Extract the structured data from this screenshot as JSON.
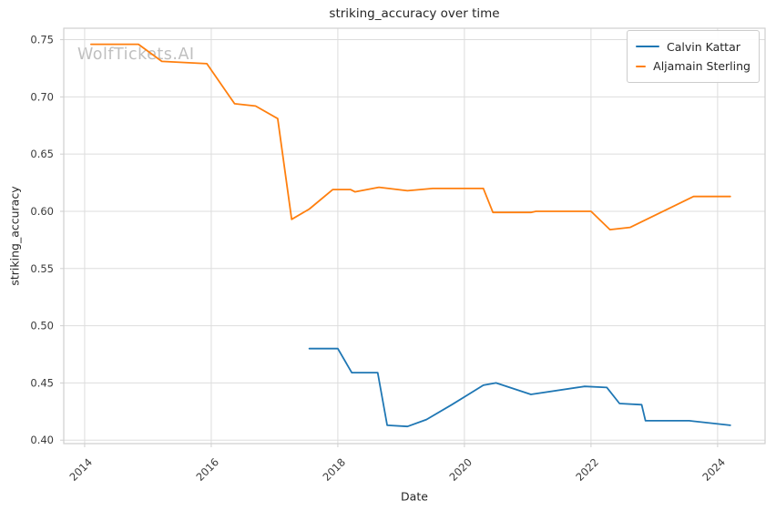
{
  "figure": {
    "title": "striking_accuracy over time",
    "xlabel": "Date",
    "ylabel": "striking_accuracy",
    "watermark": "WolfTickets.AI"
  },
  "legend": {
    "position": "upper right",
    "items": [
      {
        "label": "Calvin Kattar",
        "color": "#1f77b4"
      },
      {
        "label": "Aljamain Sterling",
        "color": "#ff7f0e"
      }
    ]
  },
  "colors": {
    "background": "#ffffff",
    "grid": "#dddddd",
    "spine": "#cfcfcf",
    "tick_text": "#3a3a3a",
    "title_text": "#262626",
    "watermark": "#bfbfbf",
    "series_blue": "#1f77b4",
    "series_orange": "#ff7f0e"
  },
  "chart_data": {
    "type": "line",
    "title": "striking_accuracy over time",
    "xlabel": "Date",
    "ylabel": "striking_accuracy",
    "grid": true,
    "legend_position": "upper right",
    "xlim": [
      2013.67,
      2024.75
    ],
    "ylim": [
      0.397,
      0.76
    ],
    "xtick_values": [
      2014,
      2016,
      2018,
      2020,
      2022,
      2024
    ],
    "xtick_labels": [
      "2014",
      "2016",
      "2018",
      "2020",
      "2022",
      "2024"
    ],
    "ytick_values": [
      0.4,
      0.45,
      0.5,
      0.55,
      0.6,
      0.65,
      0.7,
      0.75
    ],
    "ytick_labels": [
      "0.40",
      "0.45",
      "0.50",
      "0.55",
      "0.60",
      "0.65",
      "0.70",
      "0.75"
    ],
    "series": [
      {
        "name": "Calvin Kattar",
        "color": "#1f77b4",
        "points": [
          [
            2017.55,
            0.48
          ],
          [
            2018.0,
            0.48
          ],
          [
            2018.22,
            0.459
          ],
          [
            2018.63,
            0.459
          ],
          [
            2018.78,
            0.413
          ],
          [
            2019.1,
            0.412
          ],
          [
            2019.4,
            0.418
          ],
          [
            2019.8,
            0.431
          ],
          [
            2020.3,
            0.448
          ],
          [
            2020.5,
            0.45
          ],
          [
            2021.05,
            0.44
          ],
          [
            2021.9,
            0.447
          ],
          [
            2022.25,
            0.446
          ],
          [
            2022.45,
            0.432
          ],
          [
            2022.8,
            0.431
          ],
          [
            2022.86,
            0.417
          ],
          [
            2023.55,
            0.417
          ],
          [
            2024.2,
            0.413
          ]
        ]
      },
      {
        "name": "Aljamain Sterling",
        "color": "#ff7f0e",
        "points": [
          [
            2014.1,
            0.746
          ],
          [
            2014.85,
            0.746
          ],
          [
            2015.22,
            0.731
          ],
          [
            2015.93,
            0.729
          ],
          [
            2016.37,
            0.694
          ],
          [
            2016.7,
            0.692
          ],
          [
            2017.05,
            0.681
          ],
          [
            2017.27,
            0.593
          ],
          [
            2017.55,
            0.602
          ],
          [
            2017.92,
            0.619
          ],
          [
            2018.2,
            0.619
          ],
          [
            2018.27,
            0.617
          ],
          [
            2018.65,
            0.621
          ],
          [
            2019.1,
            0.618
          ],
          [
            2019.5,
            0.62
          ],
          [
            2020.3,
            0.62
          ],
          [
            2020.45,
            0.599
          ],
          [
            2021.05,
            0.599
          ],
          [
            2021.13,
            0.6
          ],
          [
            2022.0,
            0.6
          ],
          [
            2022.3,
            0.584
          ],
          [
            2022.62,
            0.586
          ],
          [
            2023.62,
            0.613
          ],
          [
            2024.2,
            0.613
          ]
        ]
      }
    ]
  }
}
